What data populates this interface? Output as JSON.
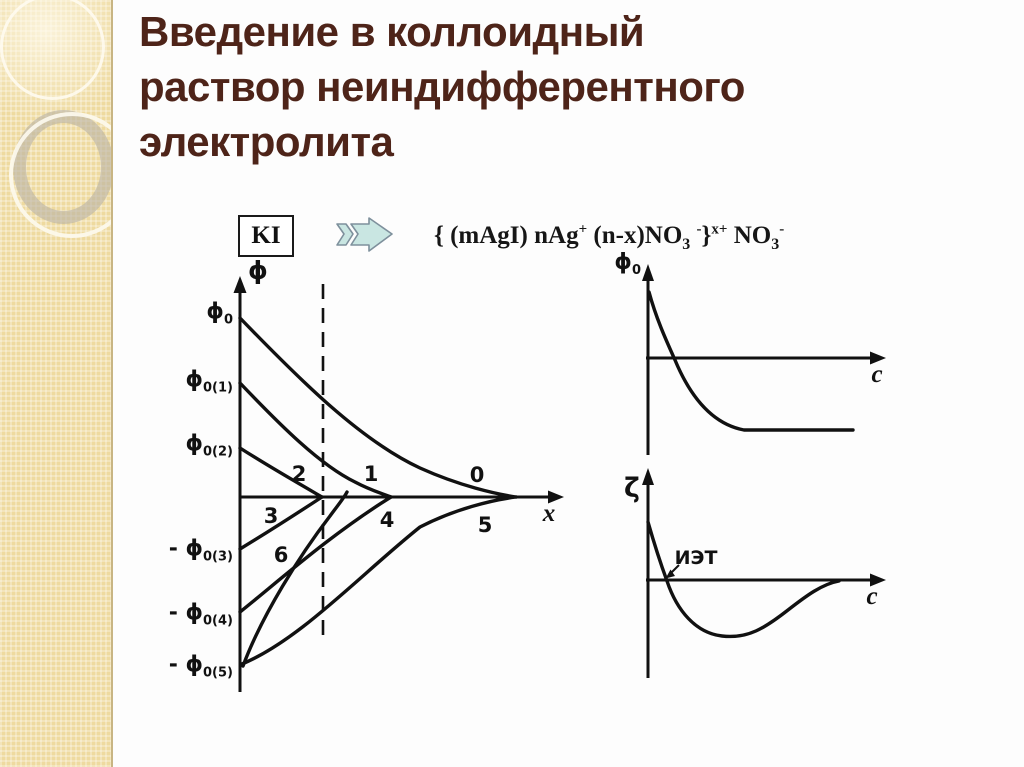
{
  "slide": {
    "title_lines": [
      "Введение в коллоидный",
      "раствор неиндифферентного",
      "электролита"
    ]
  },
  "colors": {
    "title": "#4e2419",
    "sidebar": "#eeda9f",
    "arrow_fill": "#c9e6e2",
    "ink": "#111111"
  },
  "reaction": {
    "reactant": "KI",
    "formula_segments": [
      {
        "text": "{ (mAgI) nAg"
      },
      {
        "sup": "+"
      },
      {
        "text": " (n-x)NO"
      },
      {
        "sub": "3"
      },
      {
        "text": " "
      },
      {
        "sup": "-"
      },
      {
        "text": "}"
      },
      {
        "sup": "x+"
      },
      {
        "text": " NO"
      },
      {
        "sub": "3"
      },
      {
        "sup": "-"
      }
    ]
  },
  "left_chart": {
    "y_axis_title": "ϕ",
    "x_axis_title": "x",
    "y_labels": [
      {
        "main": "ϕ",
        "sub": "0"
      },
      {
        "main": "ϕ",
        "sub": "0(1)"
      },
      {
        "main": "ϕ",
        "sub": "0(2)"
      },
      {
        "main": "- ϕ",
        "sub": "0(3)"
      },
      {
        "main": "- ϕ",
        "sub": "0(4)"
      },
      {
        "main": "- ϕ",
        "sub": "0(5)"
      }
    ],
    "curve_labels": [
      "0",
      "1",
      "2",
      "3",
      "4",
      "5",
      "6"
    ]
  },
  "top_right_chart": {
    "y_label": {
      "main": "ϕ",
      "sub": "0"
    },
    "x_axis_title": "c"
  },
  "bottom_right_chart": {
    "y_axis_title": "ζ",
    "x_axis_title": "c",
    "annotation": "ИЭТ"
  }
}
